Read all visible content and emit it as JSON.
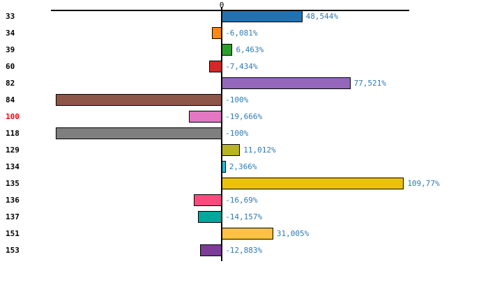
{
  "figure": {
    "background_color": "#ffffff",
    "zero_tick_label": "0",
    "value_label_color": "#2e7ab5",
    "bar_border_color": "#000000",
    "axis_color": "#000000",
    "highlighted_category": "100",
    "highlight_color": "#ff0000"
  },
  "chart_data": {
    "type": "bar",
    "orientation": "horizontal",
    "title": "",
    "xlabel": "",
    "ylabel": "",
    "unit": "%",
    "decimal_separator": ",",
    "grid": false,
    "legend": false,
    "xlim": [
      -103,
      113
    ],
    "categories": [
      "33",
      "34",
      "39",
      "60",
      "82",
      "84",
      "100",
      "118",
      "129",
      "134",
      "135",
      "136",
      "137",
      "151",
      "153"
    ],
    "values": [
      48.544,
      -6.081,
      6.463,
      -7.434,
      77.521,
      -100,
      -19.666,
      -100,
      11.012,
      2.366,
      109.77,
      -16.69,
      -14.157,
      31.005,
      -12.883
    ],
    "value_labels": [
      "48,544%",
      "-6,081%",
      "6,463%",
      "-7,434%",
      "77,521%",
      "-100%",
      "-19,666%",
      "-100%",
      "11,012%",
      "2,366%",
      "109,77%",
      "-16,69%",
      "-14,157%",
      "31,005%",
      "-12,883%"
    ],
    "bar_colors": [
      "#2272b2",
      "#ff8912",
      "#2ca02c",
      "#d62728",
      "#9467bd",
      "#8e5549",
      "#e377c2",
      "#7f7f7f",
      "#b9b522",
      "#25bad2",
      "#edc00e",
      "#fc4a7f",
      "#00a79d",
      "#fdc240",
      "#7d3c98"
    ],
    "category_label_colors": [
      "#000000",
      "#000000",
      "#000000",
      "#000000",
      "#000000",
      "#000000",
      "#ff0000",
      "#000000",
      "#000000",
      "#000000",
      "#000000",
      "#000000",
      "#000000",
      "#000000",
      "#000000"
    ]
  }
}
